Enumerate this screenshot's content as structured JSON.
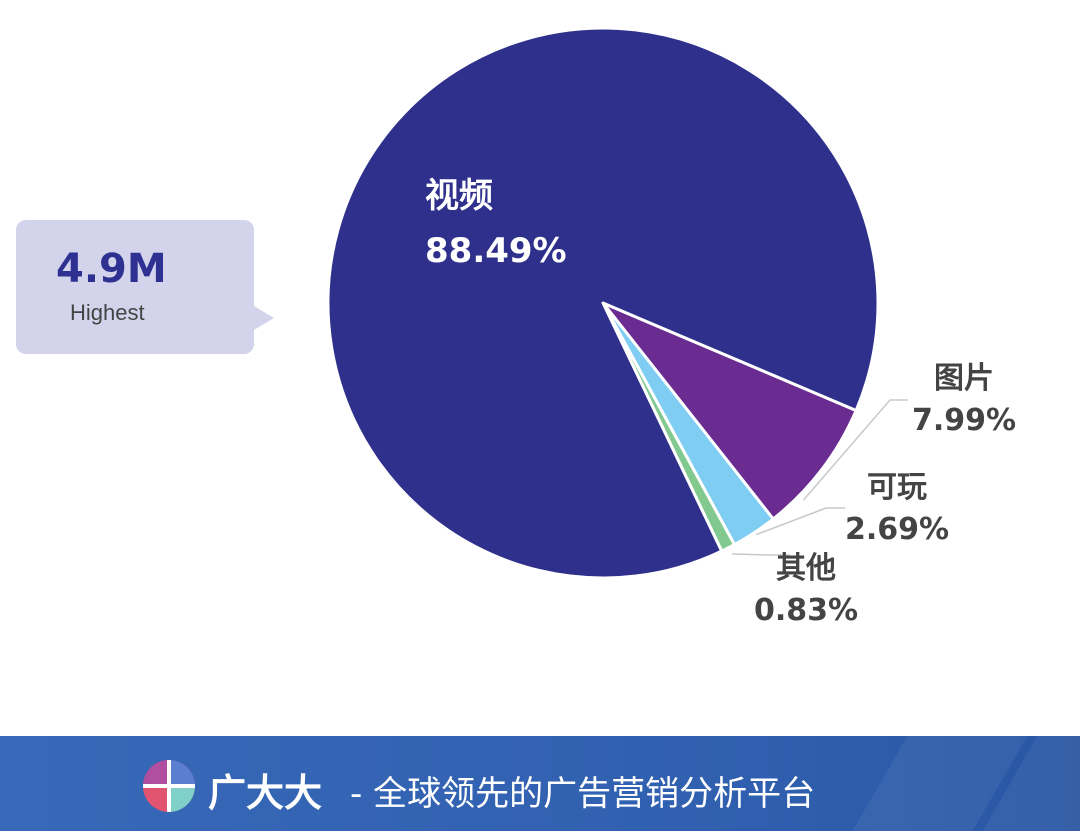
{
  "chart_data": {
    "type": "pie",
    "categories": [
      "视频",
      "图片",
      "可玩",
      "其他"
    ],
    "values": [
      88.49,
      7.99,
      2.69,
      0.83
    ],
    "labels": [
      "88.49%",
      "7.99%",
      "2.69%",
      "0.83%"
    ],
    "colors": [
      "#2e308c",
      "#6a2c91",
      "#7fcdf2",
      "#82c98f"
    ],
    "title": "",
    "legend": "none"
  },
  "callout": {
    "value": "4.9M",
    "label": "Highest"
  },
  "footer": {
    "brand": "广大大",
    "tagline": "- 全球领先的广告营销分析平台",
    "background_color": "#3466b5"
  }
}
